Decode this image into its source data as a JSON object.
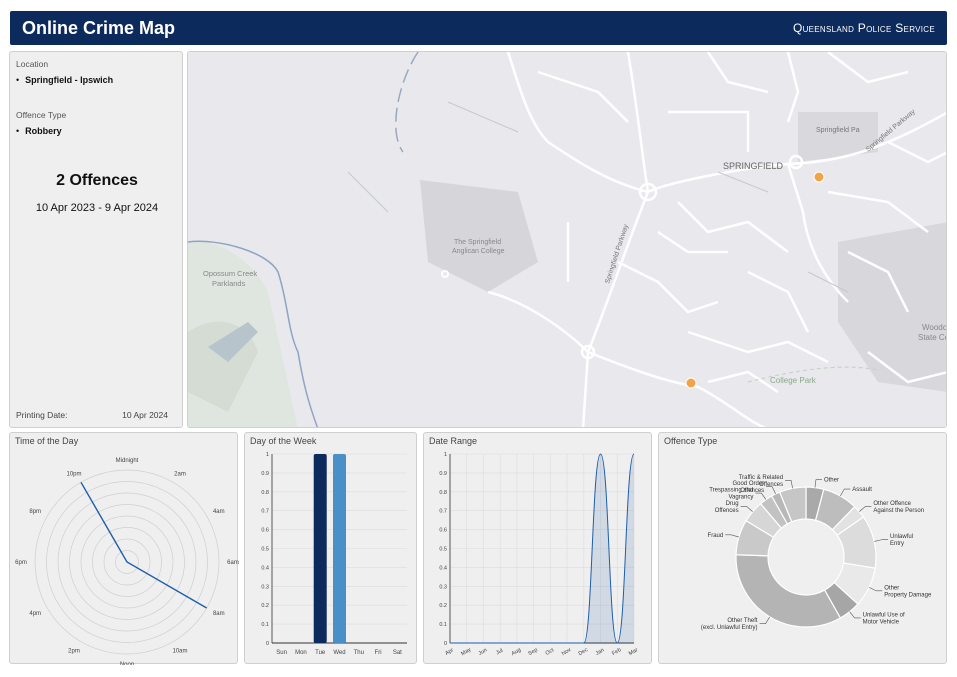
{
  "header": {
    "title": "Online Crime Map",
    "org": "Queensland Police Service"
  },
  "info": {
    "location_label": "Location",
    "location_value": "Springfield - Ipswich",
    "offence_label": "Offence Type",
    "offence_value": "Robbery",
    "count": "2 Offences",
    "date_range": "10 Apr 2023 - 9 Apr 2024",
    "printing_label": "Printing Date:",
    "printing_value": "10 Apr 2024"
  },
  "map": {
    "labels": [
      "SPRINGFIELD",
      "Springfield Parkway",
      "Springfield Parkway",
      "Springfield Pa",
      "The Springfield",
      "Anglican College",
      "Opossum Creek",
      "Parklands",
      "College Park",
      "Woodc",
      "State Coll"
    ],
    "marker_color": "#f0a44a"
  },
  "panels": {
    "time": "Time of the Day",
    "dow": "Day of the Week",
    "range": "Date Range",
    "offence": "Offence Type"
  },
  "chart_data": [
    {
      "type": "radar",
      "title": "Time of the Day",
      "categories": [
        "Midnight",
        "2am",
        "4am",
        "6am",
        "8am",
        "10am",
        "Noon",
        "2pm",
        "4pm",
        "6pm",
        "8pm",
        "10pm"
      ],
      "values": [
        0,
        0,
        0,
        0,
        1,
        0,
        0,
        0,
        0,
        0,
        0,
        1
      ]
    },
    {
      "type": "bar",
      "title": "Day of the Week",
      "categories": [
        "Sun",
        "Mon",
        "Tue",
        "Wed",
        "Thu",
        "Fri",
        "Sat"
      ],
      "values": [
        0,
        0,
        1,
        1,
        0,
        0,
        0
      ],
      "colors": [
        "#0d2a5c",
        "#0d2a5c",
        "#0d2a5c",
        "#4a90c6",
        "#0d2a5c",
        "#0d2a5c",
        "#0d2a5c"
      ],
      "yticks": [
        "0",
        "0.1",
        "0.2",
        "0.3",
        "0.4",
        "0.5",
        "0.6",
        "0.7",
        "0.8",
        "0.9",
        "1"
      ],
      "ylim": [
        0,
        1
      ]
    },
    {
      "type": "area",
      "title": "Date Range",
      "categories": [
        "Apr",
        "May",
        "Jun",
        "Jul",
        "Aug",
        "Sep",
        "Oct",
        "Nov",
        "Dec",
        "Jan",
        "Feb",
        "Mar"
      ],
      "values": [
        0,
        0,
        0,
        0,
        0,
        0,
        0,
        0,
        0,
        1,
        0,
        1
      ],
      "yticks": [
        "0",
        "0.1",
        "0.2",
        "0.3",
        "0.4",
        "0.5",
        "0.6",
        "0.7",
        "0.8",
        "0.9",
        "1"
      ],
      "ylim": [
        0,
        1
      ]
    },
    {
      "type": "pie",
      "title": "Offence Type",
      "slices": [
        {
          "label": "Other",
          "value": 4,
          "color": "#a9a9a9"
        },
        {
          "label": "Assault",
          "value": 8,
          "color": "#bdbdbd"
        },
        {
          "label": "Other Offence\nAgainst the Person",
          "value": 3,
          "color": "#e2e2e2"
        },
        {
          "label": "Unlawful\nEntry",
          "value": 12,
          "color": "#dcdcdc"
        },
        {
          "label": "Other\nProperty Damage",
          "value": 9,
          "color": "#e9e9e9"
        },
        {
          "label": "Unlawful Use of\nMotor Vehicle",
          "value": 5,
          "color": "#a6a6a6"
        },
        {
          "label": "Other Theft\n(excl. Unlawful Entry)",
          "value": 33,
          "color": "#b4b4b4"
        },
        {
          "label": "Fraud",
          "value": 8,
          "color": "#c9c9c9"
        },
        {
          "label": "Drug\nOffences",
          "value": 5,
          "color": "#d6d6d6"
        },
        {
          "label": "Trespassing and\nVagrancy",
          "value": 3,
          "color": "#c2c2c2"
        },
        {
          "label": "Good Order\nOffences",
          "value": 2,
          "color": "#b8b8b8"
        },
        {
          "label": "Traffic & Related\nOffences",
          "value": 6,
          "color": "#c6c6c6"
        }
      ]
    }
  ]
}
